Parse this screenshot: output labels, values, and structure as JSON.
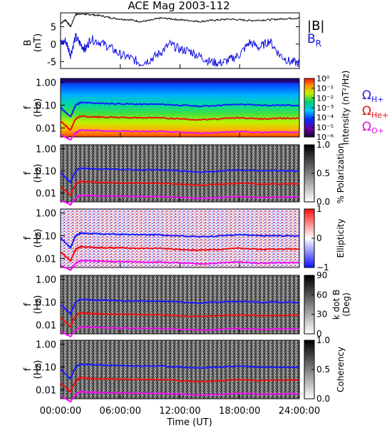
{
  "figure": {
    "title": "ACE Mag 2003-112",
    "xlabel": "Time (UT)",
    "xticks": [
      "00:00:00",
      "06:00:00",
      "12:00:00",
      "18:00:00",
      "24:00:00"
    ],
    "freq_label_f": "f",
    "freq_label_unit": "(Hz)",
    "freq_ticks": [
      "1.00",
      "0.10",
      "0.01"
    ],
    "gyro_labels": [
      {
        "text": "Ω",
        "sub": "H+",
        "color": "#2020e0"
      },
      {
        "text": "Ω",
        "sub": "He+",
        "color": "#e01010"
      },
      {
        "text": "Ω",
        "sub": "O+",
        "color": "#e010e0"
      }
    ]
  },
  "colors": {
    "b_total": "#000000",
    "b_radial": "#1010e0",
    "f_h": "#1a1aff",
    "f_he": "#ee1010",
    "f_o": "#ee10ee"
  },
  "chart_data": [
    {
      "type": "line",
      "panel": "magnetic-field",
      "ylabel_main": "B",
      "ylabel_unit": "(nT)",
      "yticks": [
        "5",
        "0",
        "-5"
      ],
      "ylim": [
        -7,
        9
      ],
      "xlim_hours": [
        0,
        24
      ],
      "legend": {
        "total": "|B|",
        "radial": "B",
        "radial_sub": "R"
      },
      "series": [
        {
          "key": "total",
          "x": [
            0,
            0.5,
            1,
            1.5,
            2,
            2.5,
            3,
            4,
            5,
            6,
            7,
            8,
            9,
            10,
            11,
            12,
            13,
            14,
            15,
            16,
            17,
            18,
            19,
            20,
            21,
            22,
            23,
            24
          ],
          "y": [
            6,
            7,
            5,
            8.5,
            8.8,
            8.6,
            8.5,
            8.2,
            7.6,
            7.2,
            7,
            6.5,
            6.8,
            7.5,
            7.3,
            7,
            6.8,
            6.5,
            6.8,
            7,
            7.2,
            7,
            6.8,
            6.9,
            7,
            7.2,
            7.4,
            7.5
          ]
        },
        {
          "key": "radial",
          "x": [
            0,
            0.5,
            1,
            1.5,
            2,
            2.5,
            3,
            4,
            5,
            6,
            7,
            8,
            9,
            10,
            11,
            12,
            13,
            14,
            15,
            16,
            17,
            18,
            19,
            20,
            21,
            22,
            23,
            24
          ],
          "y": [
            0,
            1,
            -3,
            2,
            0,
            -1.5,
            1.5,
            0.5,
            -1,
            -3,
            -4,
            -5.5,
            -4.5,
            -2.5,
            0,
            -1.5,
            -2,
            -3.5,
            -5,
            -5.5,
            -4.5,
            -3,
            0.5,
            -1,
            1,
            -3,
            -5,
            -5.5
          ]
        }
      ]
    },
    {
      "type": "heatmap",
      "panel": "intensity",
      "colorbar_label": "Intensity (nT²/Hz)",
      "colorbar_ticks": [
        "10⁰",
        "10⁻¹",
        "10⁻²",
        "10⁻³",
        "10⁻⁴",
        "10⁻⁵",
        "10⁻⁶"
      ],
      "ylim_hz": [
        0.004,
        1.5
      ]
    },
    {
      "type": "heatmap",
      "panel": "polarization",
      "colorbar_label": "% Polarization",
      "colorbar_ticks": [
        "1.0",
        "0.5",
        "0.0"
      ],
      "ylim_hz": [
        0.004,
        1.5
      ]
    },
    {
      "type": "heatmap",
      "panel": "ellipticity",
      "colorbar_label": "Ellipticity",
      "colorbar_ticks": [
        "1",
        "0",
        "−1"
      ],
      "ylim_hz": [
        0.004,
        1.5
      ]
    },
    {
      "type": "heatmap",
      "panel": "k-dot-b",
      "colorbar_label_1": "k dot B",
      "colorbar_label_2": "(Deg)",
      "colorbar_ticks": [
        "90",
        "60",
        "30",
        "0"
      ],
      "ylim_hz": [
        0.004,
        1.5
      ]
    },
    {
      "type": "heatmap",
      "panel": "coherency",
      "colorbar_label": "Coherency",
      "colorbar_ticks": [
        "1.0",
        "0.5",
        "0.0"
      ],
      "ylim_hz": [
        0.004,
        1.5
      ]
    },
    {
      "type": "line",
      "panel": "gyrofrequency-overlays",
      "x": [
        0,
        1,
        1.5,
        2,
        3,
        4,
        6,
        8,
        10,
        12,
        14,
        16,
        18,
        20,
        22,
        24
      ],
      "series": [
        {
          "key": "H+",
          "y": [
            0.08,
            0.03,
            0.1,
            0.13,
            0.125,
            0.12,
            0.115,
            0.11,
            0.11,
            0.1,
            0.09,
            0.1,
            0.11,
            0.1,
            0.1,
            0.1
          ]
        },
        {
          "key": "He+",
          "y": [
            0.02,
            0.008,
            0.025,
            0.033,
            0.031,
            0.03,
            0.029,
            0.028,
            0.028,
            0.025,
            0.023,
            0.025,
            0.028,
            0.025,
            0.026,
            0.027
          ]
        },
        {
          "key": "O+",
          "y": [
            0.005,
            0.003,
            0.006,
            0.008,
            0.0078,
            0.0075,
            0.0072,
            0.007,
            0.007,
            0.0063,
            0.0058,
            0.0063,
            0.007,
            0.0063,
            0.0065,
            0.0066
          ]
        }
      ]
    }
  ]
}
